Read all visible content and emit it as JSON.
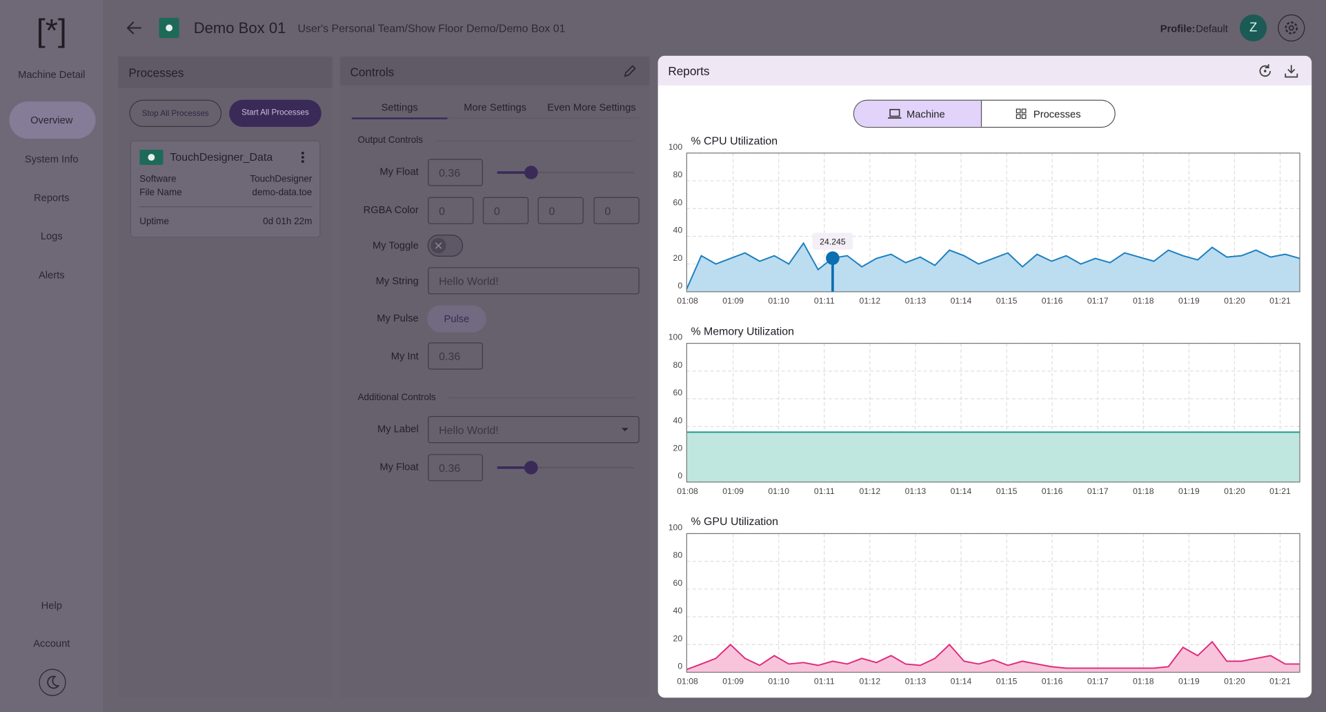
{
  "sidebar": {
    "logo": "[*]",
    "title": "Machine Detail",
    "nav": [
      "Overview",
      "System Info",
      "Reports",
      "Logs",
      "Alerts"
    ],
    "bottom": [
      "Help",
      "Account"
    ]
  },
  "header": {
    "title": "Demo Box 01",
    "breadcrumb": "User's Personal Team/Show Floor Demo/Demo Box 01",
    "profile_label": "Profile:",
    "profile_value": "Default",
    "avatar": "Z"
  },
  "processes": {
    "title": "Processes",
    "buttons": [
      "Stop All Processes",
      "Start All Processes"
    ],
    "card": {
      "name": "TouchDesigner_Data",
      "rows": [
        [
          "Software",
          "TouchDesigner"
        ],
        [
          "File Name",
          "demo-data.toe"
        ],
        [
          "Uptime",
          "0d 01h 22m"
        ]
      ]
    }
  },
  "controls": {
    "title": "Controls",
    "tabs": [
      "Settings",
      "More Settings",
      "Even More Settings"
    ],
    "output": {
      "title": "Output Controls",
      "my_float": {
        "label": "My Float",
        "value": 0.36
      },
      "rgba": {
        "label": "RGBA Color",
        "values": [
          0,
          0,
          0,
          0
        ]
      },
      "toggle": {
        "label": "My Toggle"
      },
      "string": {
        "label": "My String",
        "value": "Hello World!"
      },
      "pulse": {
        "label": "My Pulse",
        "button": "Pulse"
      },
      "int": {
        "label": "My Int",
        "value": 0.36
      }
    },
    "additional": {
      "title": "Additional Controls",
      "label": {
        "label": "My Label",
        "value": "Hello World!"
      },
      "my_float": {
        "label": "My Float",
        "value": 0.36
      }
    }
  },
  "reports": {
    "title": "Reports",
    "toggle": [
      "Machine",
      "Processes"
    ]
  },
  "chart_data": [
    {
      "type": "area",
      "title": "% CPU Utilization",
      "color": "#1a7fbf",
      "fill": "#bcdcf0",
      "ylim": [
        0,
        100
      ],
      "yticks": [
        0,
        20,
        40,
        60,
        80,
        100
      ],
      "grid": true,
      "xticks": [
        "01:08",
        "01:09",
        "01:10",
        "01:11",
        "01:12",
        "01:13",
        "01:14",
        "01:15",
        "01:16",
        "01:17",
        "01:18",
        "01:19",
        "01:20",
        "01:21"
      ],
      "values": [
        2,
        26,
        20,
        24,
        28,
        22,
        26,
        20,
        35,
        16,
        24.245,
        26,
        18,
        24,
        27,
        21,
        25,
        19,
        30,
        26,
        20,
        24,
        28,
        18,
        27,
        22,
        26,
        20,
        24,
        21,
        28,
        25,
        22,
        30,
        26,
        23,
        32,
        25,
        26,
        30,
        25,
        27,
        24
      ]
    },
    {
      "type": "area",
      "title": "% Memory Utilization",
      "color": "#1f9a8a",
      "fill": "#bfe6df",
      "ylim": [
        0,
        100
      ],
      "yticks": [
        0,
        20,
        40,
        60,
        80,
        100
      ],
      "grid": true,
      "xticks": [
        "01:08",
        "01:09",
        "01:10",
        "01:11",
        "01:12",
        "01:13",
        "01:14",
        "01:15",
        "01:16",
        "01:17",
        "01:18",
        "01:19",
        "01:20",
        "01:21"
      ],
      "values": [
        36,
        36,
        36,
        36,
        36,
        36,
        36,
        36,
        36,
        36,
        36,
        36,
        36,
        36,
        36,
        36,
        36,
        36,
        36,
        36
      ]
    },
    {
      "type": "area",
      "title": "% GPU Utilization",
      "color": "#e0287a",
      "fill": "#f8c4dc",
      "ylim": [
        0,
        100
      ],
      "yticks": [
        0,
        20,
        40,
        60,
        80,
        100
      ],
      "grid": true,
      "xticks": [
        "01:08",
        "01:09",
        "01:10",
        "01:11",
        "01:12",
        "01:13",
        "01:14",
        "01:15",
        "01:16",
        "01:17",
        "01:18",
        "01:19",
        "01:20",
        "01:21"
      ],
      "values": [
        2,
        6,
        10,
        20,
        10,
        5,
        12,
        6,
        7,
        5,
        8,
        6,
        10,
        7,
        12,
        6,
        5,
        10,
        20,
        8,
        6,
        9,
        5,
        8,
        6,
        4,
        3,
        3,
        3,
        3,
        3,
        3,
        3,
        4,
        18,
        12,
        22,
        8,
        8,
        10,
        12,
        6,
        6
      ]
    }
  ]
}
